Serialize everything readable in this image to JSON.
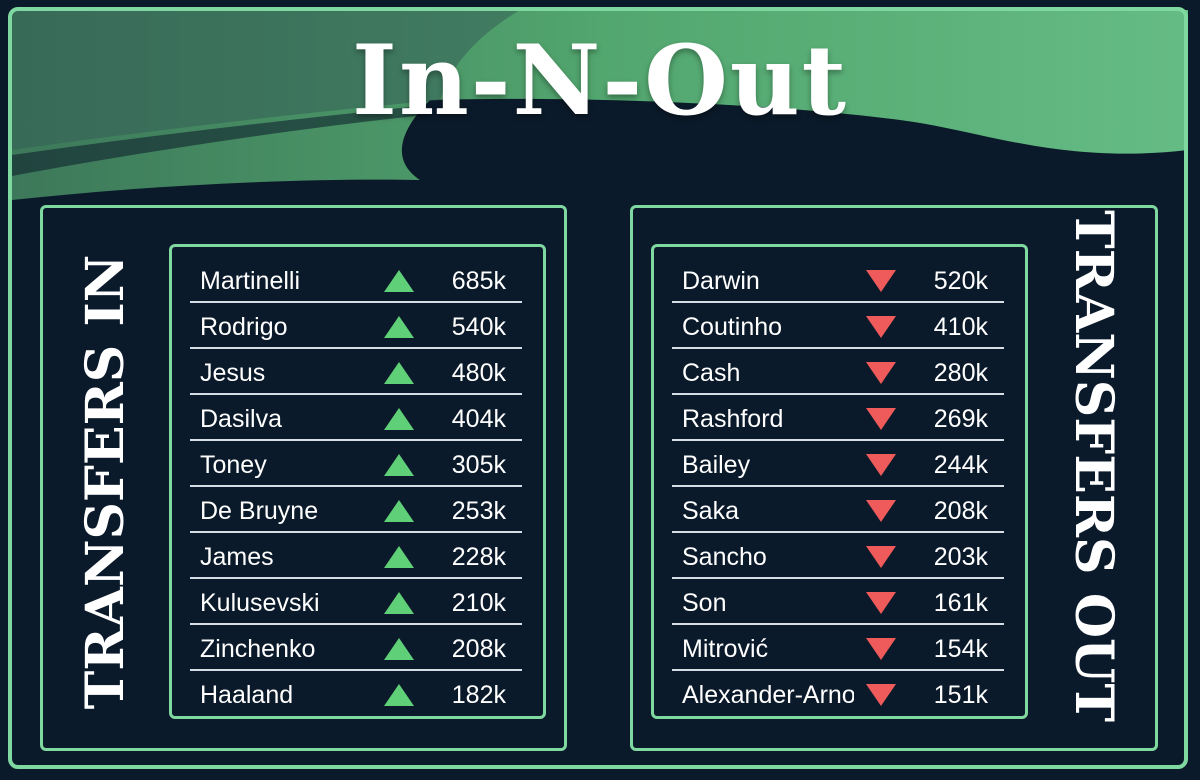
{
  "title": "In-N-Out",
  "colors": {
    "background": "#0b1a2a",
    "frame": "#7fd8a0",
    "swoosh": "#5bb87a",
    "arrow_up": "#5fcf78",
    "arrow_down": "#ef5a5a",
    "text": "#ffffff"
  },
  "transfers_in": {
    "label": "TRANSFERS IN",
    "icon": "triangle-up-icon",
    "rows": [
      {
        "name": "Martinelli",
        "count": "685k"
      },
      {
        "name": "Rodrigo",
        "count": "540k"
      },
      {
        "name": "Jesus",
        "count": "480k"
      },
      {
        "name": "Dasilva",
        "count": "404k"
      },
      {
        "name": "Toney",
        "count": "305k"
      },
      {
        "name": "De Bruyne",
        "count": "253k"
      },
      {
        "name": "James",
        "count": "228k"
      },
      {
        "name": "Kulusevski",
        "count": "210k"
      },
      {
        "name": "Zinchenko",
        "count": "208k"
      },
      {
        "name": "Haaland",
        "count": "182k"
      }
    ]
  },
  "transfers_out": {
    "label": "TRANSFERS OUT",
    "icon": "triangle-down-icon",
    "rows": [
      {
        "name": "Darwin",
        "count": "520k"
      },
      {
        "name": "Coutinho",
        "count": "410k"
      },
      {
        "name": "Cash",
        "count": "280k"
      },
      {
        "name": "Rashford",
        "count": "269k"
      },
      {
        "name": "Bailey",
        "count": "244k"
      },
      {
        "name": "Saka",
        "count": "208k"
      },
      {
        "name": "Sancho",
        "count": "203k"
      },
      {
        "name": "Son",
        "count": "161k"
      },
      {
        "name": "Mitrović",
        "count": "154k"
      },
      {
        "name": "Alexander-Arnold",
        "count": "151k"
      }
    ]
  }
}
